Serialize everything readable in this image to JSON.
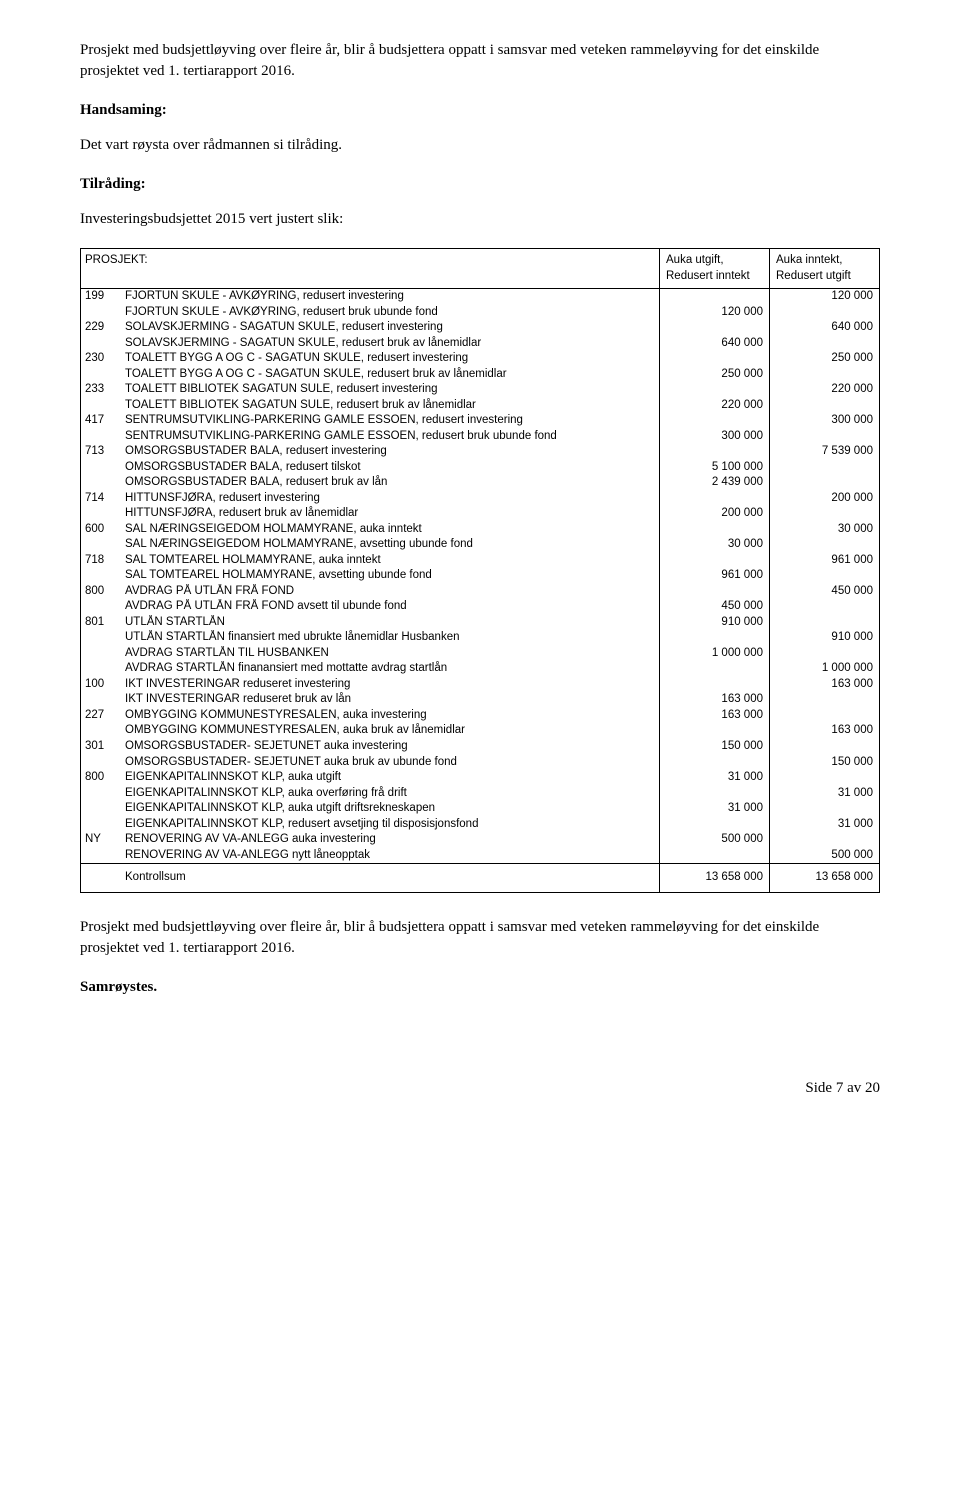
{
  "intro": {
    "p1": "Prosjekt med budsjettløyving over fleire år, blir å budsjettera oppatt i samsvar med veteken rammeløyving for det einskilde prosjektet ved 1. tertiarapport 2016.",
    "handsaming_label": "Handsaming:",
    "handsaming_text": "Det vart røysta over rådmannen si tilråding.",
    "tilrading_label": "Tilråding:",
    "tilrading_text": "Investeringsbudsjettet 2015 vert justert slik:"
  },
  "table": {
    "header": {
      "proj": "PROSJEKT:",
      "col_a_l1": "Auka utgift,",
      "col_a_l2": "Redusert inntekt",
      "col_b_l1": "Auka inntekt,",
      "col_b_l2": "Redusert utgift"
    },
    "rows": [
      {
        "proj": "199",
        "desc": "FJORTUN SKULE - AVKØYRING, redusert investering",
        "a": "",
        "b": "120 000"
      },
      {
        "proj": "",
        "desc": "FJORTUN SKULE - AVKØYRING, redusert bruk ubunde fond",
        "a": "120 000",
        "b": ""
      },
      {
        "proj": "229",
        "desc": "SOLAVSKJERMING - SAGATUN SKULE, redusert investering",
        "a": "",
        "b": "640 000"
      },
      {
        "proj": "",
        "desc": "SOLAVSKJERMING - SAGATUN SKULE, redusert bruk av lånemidlar",
        "a": "640 000",
        "b": ""
      },
      {
        "proj": "230",
        "desc": "TOALETT BYGG A OG C - SAGATUN SKULE, redusert investering",
        "a": "",
        "b": "250 000"
      },
      {
        "proj": "",
        "desc": "TOALETT BYGG A OG C - SAGATUN SKULE, redusert bruk av lånemidlar",
        "a": "250 000",
        "b": ""
      },
      {
        "proj": "233",
        "desc": "TOALETT BIBLIOTEK SAGATUN SULE, redusert investering",
        "a": "",
        "b": "220 000"
      },
      {
        "proj": "",
        "desc": "TOALETT BIBLIOTEK SAGATUN SULE, redusert  bruk av lånemidlar",
        "a": "220 000",
        "b": ""
      },
      {
        "proj": "417",
        "desc": "SENTRUMSUTVIKLING-PARKERING GAMLE ESSOEN, redusert investering",
        "a": "",
        "b": "300 000"
      },
      {
        "proj": "",
        "desc": "SENTRUMSUTVIKLING-PARKERING GAMLE ESSOEN, redusert bruk ubunde fond",
        "a": "300 000",
        "b": ""
      },
      {
        "proj": "713",
        "desc": "OMSORGSBUSTADER BALA, redusert investering",
        "a": "",
        "b": "7 539 000"
      },
      {
        "proj": "",
        "desc": "OMSORGSBUSTADER BALA, redusert tilskot",
        "a": "5 100 000",
        "b": ""
      },
      {
        "proj": "",
        "desc": "OMSORGSBUSTADER BALA, redusert bruk av lån",
        "a": "2 439 000",
        "b": ""
      },
      {
        "proj": "714",
        "desc": "HITTUNSFJØRA, redusert investering",
        "a": "",
        "b": "200 000"
      },
      {
        "proj": "",
        "desc": "HITTUNSFJØRA, redusert bruk av lånemidlar",
        "a": "200 000",
        "b": ""
      },
      {
        "proj": "600",
        "desc": "SAL NÆRINGSEIGEDOM HOLMAMYRANE, auka inntekt",
        "a": "",
        "b": "30 000"
      },
      {
        "proj": "",
        "desc": "SAL NÆRINGSEIGEDOM HOLMAMYRANE, avsetting ubunde fond",
        "a": "30 000",
        "b": ""
      },
      {
        "proj": "718",
        "desc": "SAL TOMTEAREL HOLMAMYRANE, auka inntekt",
        "a": "",
        "b": "961 000"
      },
      {
        "proj": "",
        "desc": "SAL TOMTEAREL HOLMAMYRANE, avsetting ubunde fond",
        "a": "961 000",
        "b": ""
      },
      {
        "proj": "800",
        "desc": "AVDRAG PÅ UTLÅN FRÅ FOND",
        "a": "",
        "b": "450 000"
      },
      {
        "proj": "",
        "desc": "AVDRAG PÅ UTLÅN FRÅ FOND avsett til ubunde fond",
        "a": "450 000",
        "b": ""
      },
      {
        "proj": "801",
        "desc": "UTLÅN STARTLÅN",
        "a": "910 000",
        "b": ""
      },
      {
        "proj": "",
        "desc": "UTLÅN STARTLÅN finansiert med ubrukte lånemidlar Husbanken",
        "a": "",
        "b": "910 000"
      },
      {
        "proj": "",
        "desc": "AVDRAG STARTLÅN TIL HUSBANKEN",
        "a": "1 000 000",
        "b": ""
      },
      {
        "proj": "",
        "desc": "AVDRAG STARTLÅN finanansiert med mottatte avdrag startlån",
        "a": "",
        "b": "1 000 000"
      },
      {
        "proj": "100",
        "desc": "IKT INVESTERINGAR reduseret investering",
        "a": "",
        "b": "163 000"
      },
      {
        "proj": "",
        "desc": "IKT INVESTERINGAR reduseret bruk av lån",
        "a": "163 000",
        "b": ""
      },
      {
        "proj": "227",
        "desc": "OMBYGGING KOMMUNESTYRESALEN, auka investering",
        "a": "163 000",
        "b": ""
      },
      {
        "proj": "",
        "desc": "OMBYGGING KOMMUNESTYRESALEN, auka bruk av lånemidlar",
        "a": "",
        "b": "163 000"
      },
      {
        "proj": "301",
        "desc": "OMSORGSBUSTADER- SEJETUNET auka investering",
        "a": "150 000",
        "b": ""
      },
      {
        "proj": "",
        "desc": "OMSORGSBUSTADER- SEJETUNET auka bruk av ubunde fond",
        "a": "",
        "b": "150 000"
      },
      {
        "proj": "800",
        "desc": "EIGENKAPITALINNSKOT KLP, auka utgift",
        "a": "31 000",
        "b": ""
      },
      {
        "proj": "",
        "desc": "EIGENKAPITALINNSKOT KLP, auka overføring frå drift",
        "a": "",
        "b": "31 000"
      },
      {
        "proj": "",
        "desc": "EIGENKAPITALINNSKOT KLP, auka utgift driftsrekneskapen",
        "a": "31 000",
        "b": ""
      },
      {
        "proj": "",
        "desc": "EIGENKAPITALINNSKOT KLP, redusert avsetjing til disposisjonsfond",
        "a": "",
        "b": "31 000"
      },
      {
        "proj": "NY",
        "desc": "RENOVERING AV VA-ANLEGG auka investering",
        "a": "500 000",
        "b": ""
      },
      {
        "proj": "",
        "desc": "RENOVERING AV VA-ANLEGG nytt låneopptak",
        "a": "",
        "b": "500 000"
      }
    ],
    "footer": {
      "label": "Kontrollsum",
      "a": "13 658 000",
      "b": "13 658 000"
    }
  },
  "outro": {
    "p1": "Prosjekt med budsjettløyving over fleire år, blir å budsjettera oppatt i samsvar med veteken rammeløyving for det einskilde prosjektet ved 1. tertiarapport 2016.",
    "samroystes": "Samrøystes."
  },
  "page_footer": "Side 7 av 20"
}
